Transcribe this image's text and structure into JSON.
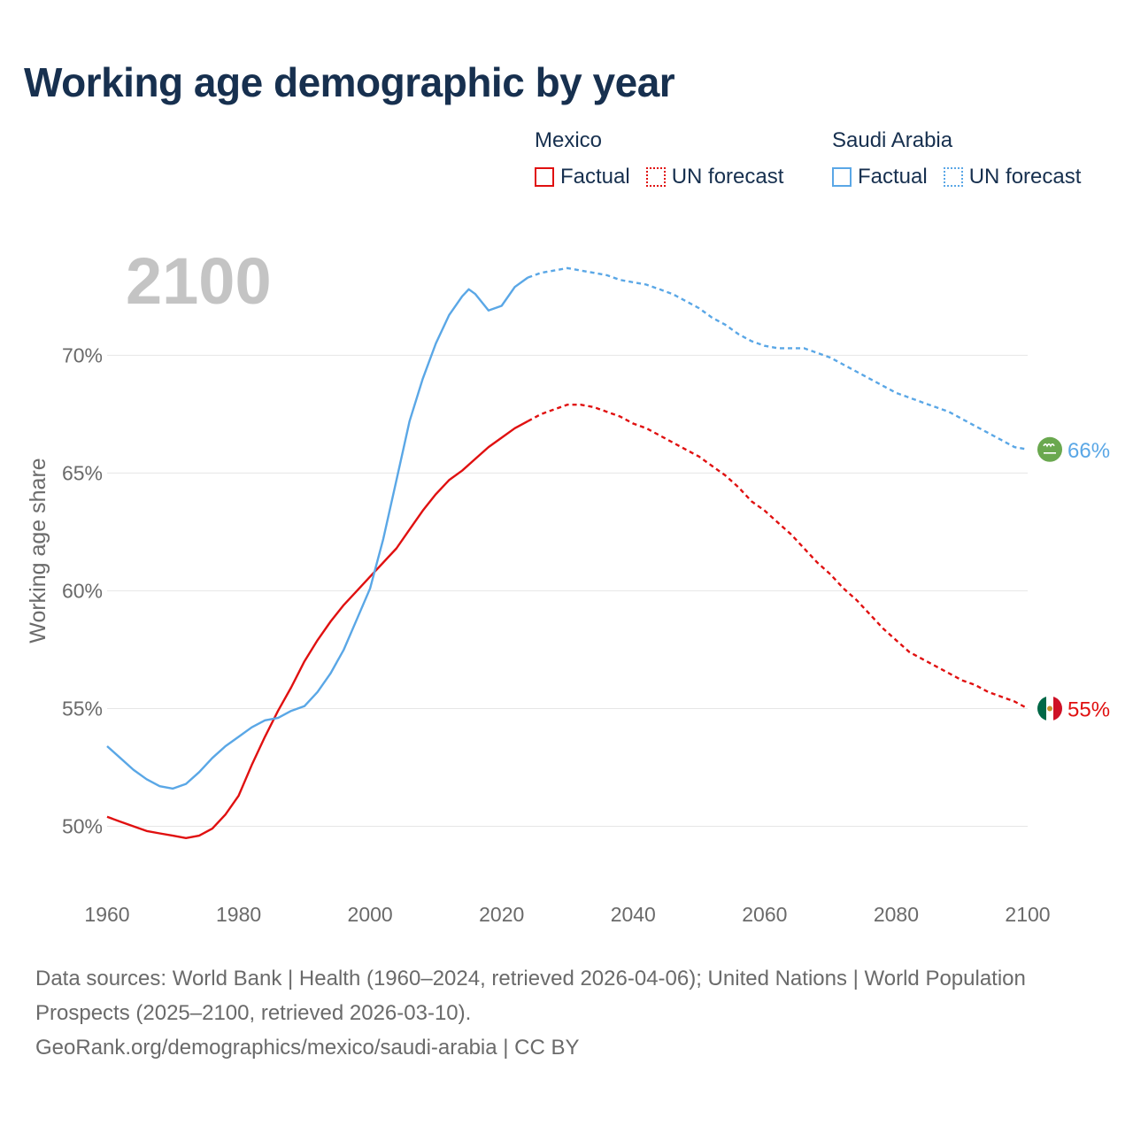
{
  "title": "Working age demographic by year",
  "legend": {
    "groups": [
      {
        "name": "Mexico",
        "factual": "Factual",
        "forecast": "UN forecast",
        "color": "#e01010"
      },
      {
        "name": "Saudi Arabia",
        "factual": "Factual",
        "forecast": "UN forecast",
        "color": "#5aa7e6"
      }
    ]
  },
  "year_label": "2100",
  "source": {
    "line1": "Data sources: World Bank | Health (1960–2024, retrieved 2026-04-06); United Nations | World Population Prospects (2025–2100, retrieved 2026-03-10).",
    "line2": "GeoRank.org/demographics/mexico/saudi-arabia | CC BY"
  },
  "chart_data": {
    "type": "line",
    "title": "Working age demographic by year",
    "xlabel": "",
    "ylabel": "Working age share",
    "xlim": [
      1960,
      2100
    ],
    "ylim": [
      47.5,
      75.5
    ],
    "x_ticks": [
      1960,
      1980,
      2000,
      2020,
      2040,
      2060,
      2080,
      2100
    ],
    "x_tick_labels": [
      "1960",
      "1980",
      "2000",
      "2020",
      "2040",
      "2060",
      "2080",
      "2100"
    ],
    "y_ticks": [
      50,
      55,
      60,
      65,
      70
    ],
    "y_tick_labels": [
      "50%",
      "55%",
      "60%",
      "65%",
      "70%"
    ],
    "factual_end_year": 2024,
    "series": [
      {
        "name": "Mexico",
        "color": "#e01010",
        "end_label": "55%",
        "flag_icon": "mexico-flag-icon",
        "points": [
          [
            1960,
            50.4
          ],
          [
            1962,
            50.2
          ],
          [
            1964,
            50.0
          ],
          [
            1966,
            49.8
          ],
          [
            1968,
            49.7
          ],
          [
            1970,
            49.6
          ],
          [
            1972,
            49.5
          ],
          [
            1974,
            49.6
          ],
          [
            1976,
            49.9
          ],
          [
            1978,
            50.5
          ],
          [
            1980,
            51.3
          ],
          [
            1982,
            52.6
          ],
          [
            1984,
            53.8
          ],
          [
            1986,
            54.9
          ],
          [
            1988,
            55.9
          ],
          [
            1990,
            57.0
          ],
          [
            1992,
            57.9
          ],
          [
            1994,
            58.7
          ],
          [
            1996,
            59.4
          ],
          [
            1998,
            60.0
          ],
          [
            2000,
            60.6
          ],
          [
            2002,
            61.2
          ],
          [
            2004,
            61.8
          ],
          [
            2006,
            62.6
          ],
          [
            2008,
            63.4
          ],
          [
            2010,
            64.1
          ],
          [
            2012,
            64.7
          ],
          [
            2014,
            65.1
          ],
          [
            2016,
            65.6
          ],
          [
            2018,
            66.1
          ],
          [
            2020,
            66.5
          ],
          [
            2022,
            66.9
          ],
          [
            2024,
            67.2
          ],
          [
            2026,
            67.5
          ],
          [
            2028,
            67.7
          ],
          [
            2030,
            67.9
          ],
          [
            2032,
            67.9
          ],
          [
            2034,
            67.8
          ],
          [
            2036,
            67.6
          ],
          [
            2038,
            67.4
          ],
          [
            2040,
            67.1
          ],
          [
            2042,
            66.9
          ],
          [
            2044,
            66.6
          ],
          [
            2046,
            66.3
          ],
          [
            2048,
            66.0
          ],
          [
            2050,
            65.7
          ],
          [
            2052,
            65.3
          ],
          [
            2054,
            64.9
          ],
          [
            2056,
            64.4
          ],
          [
            2058,
            63.8
          ],
          [
            2060,
            63.4
          ],
          [
            2062,
            62.9
          ],
          [
            2064,
            62.4
          ],
          [
            2066,
            61.8
          ],
          [
            2068,
            61.2
          ],
          [
            2070,
            60.7
          ],
          [
            2072,
            60.1
          ],
          [
            2074,
            59.6
          ],
          [
            2076,
            59.0
          ],
          [
            2078,
            58.4
          ],
          [
            2080,
            57.9
          ],
          [
            2082,
            57.4
          ],
          [
            2084,
            57.1
          ],
          [
            2086,
            56.8
          ],
          [
            2088,
            56.5
          ],
          [
            2090,
            56.2
          ],
          [
            2092,
            56.0
          ],
          [
            2094,
            55.7
          ],
          [
            2096,
            55.5
          ],
          [
            2098,
            55.3
          ],
          [
            2100,
            55.0
          ]
        ]
      },
      {
        "name": "Saudi Arabia",
        "color": "#5aa7e6",
        "end_label": "66%",
        "flag_icon": "saudi-arabia-flag-icon",
        "points": [
          [
            1960,
            53.4
          ],
          [
            1962,
            52.9
          ],
          [
            1964,
            52.4
          ],
          [
            1966,
            52.0
          ],
          [
            1968,
            51.7
          ],
          [
            1970,
            51.6
          ],
          [
            1972,
            51.8
          ],
          [
            1974,
            52.3
          ],
          [
            1976,
            52.9
          ],
          [
            1978,
            53.4
          ],
          [
            1980,
            53.8
          ],
          [
            1982,
            54.2
          ],
          [
            1984,
            54.5
          ],
          [
            1986,
            54.6
          ],
          [
            1988,
            54.9
          ],
          [
            1990,
            55.1
          ],
          [
            1992,
            55.7
          ],
          [
            1994,
            56.5
          ],
          [
            1996,
            57.5
          ],
          [
            1998,
            58.8
          ],
          [
            2000,
            60.1
          ],
          [
            2002,
            62.2
          ],
          [
            2004,
            64.7
          ],
          [
            2006,
            67.2
          ],
          [
            2008,
            69.0
          ],
          [
            2010,
            70.5
          ],
          [
            2012,
            71.7
          ],
          [
            2014,
            72.5
          ],
          [
            2015,
            72.8
          ],
          [
            2016,
            72.6
          ],
          [
            2018,
            71.9
          ],
          [
            2020,
            72.1
          ],
          [
            2022,
            72.9
          ],
          [
            2024,
            73.3
          ],
          [
            2026,
            73.5
          ],
          [
            2028,
            73.6
          ],
          [
            2030,
            73.7
          ],
          [
            2032,
            73.6
          ],
          [
            2034,
            73.5
          ],
          [
            2036,
            73.4
          ],
          [
            2038,
            73.2
          ],
          [
            2040,
            73.1
          ],
          [
            2042,
            73.0
          ],
          [
            2044,
            72.8
          ],
          [
            2046,
            72.6
          ],
          [
            2048,
            72.3
          ],
          [
            2050,
            72.0
          ],
          [
            2052,
            71.6
          ],
          [
            2054,
            71.3
          ],
          [
            2056,
            70.9
          ],
          [
            2058,
            70.6
          ],
          [
            2060,
            70.4
          ],
          [
            2062,
            70.3
          ],
          [
            2064,
            70.3
          ],
          [
            2066,
            70.3
          ],
          [
            2068,
            70.1
          ],
          [
            2070,
            69.9
          ],
          [
            2072,
            69.6
          ],
          [
            2074,
            69.3
          ],
          [
            2076,
            69.0
          ],
          [
            2078,
            68.7
          ],
          [
            2080,
            68.4
          ],
          [
            2082,
            68.2
          ],
          [
            2084,
            68.0
          ],
          [
            2086,
            67.8
          ],
          [
            2088,
            67.6
          ],
          [
            2090,
            67.3
          ],
          [
            2092,
            67.0
          ],
          [
            2094,
            66.7
          ],
          [
            2096,
            66.4
          ],
          [
            2098,
            66.1
          ],
          [
            2100,
            66.0
          ]
        ]
      }
    ]
  }
}
